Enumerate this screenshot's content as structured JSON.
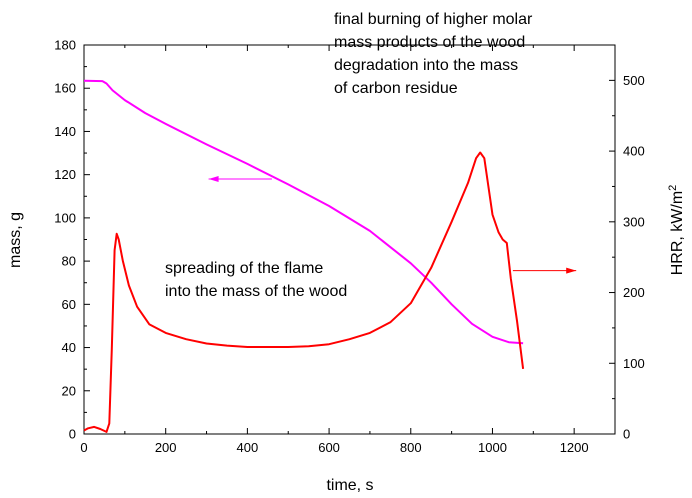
{
  "chart_data": {
    "type": "line",
    "xlabel": "time, s",
    "ylabel_left": "mass, g",
    "ylabel_right": "HRR, kW/m",
    "ylabel_right_superscript": "2",
    "xlim": [
      0,
      1300
    ],
    "ylim_left": [
      0,
      180
    ],
    "ylim_right": [
      0,
      550
    ],
    "x_ticks": [
      0,
      200,
      400,
      600,
      800,
      1000,
      1200
    ],
    "y_left_ticks": [
      0,
      20,
      40,
      60,
      80,
      100,
      120,
      140,
      160,
      180
    ],
    "y_right_ticks": [
      0,
      100,
      200,
      300,
      400,
      500
    ],
    "grid": false,
    "colors": {
      "mass": "#ff00ff",
      "hrr": "#ff0000",
      "axis": "#000000"
    },
    "series": [
      {
        "key": "mass",
        "axis": "left",
        "points": [
          [
            0,
            163.5
          ],
          [
            45,
            163.3
          ],
          [
            55,
            162.2
          ],
          [
            70,
            159
          ],
          [
            100,
            154.5
          ],
          [
            150,
            148.5
          ],
          [
            200,
            143.5
          ],
          [
            300,
            134
          ],
          [
            400,
            125
          ],
          [
            500,
            115.5
          ],
          [
            600,
            105.5
          ],
          [
            700,
            94
          ],
          [
            800,
            79
          ],
          [
            850,
            70
          ],
          [
            900,
            60
          ],
          [
            950,
            51
          ],
          [
            1000,
            45
          ],
          [
            1040,
            42.5
          ],
          [
            1075,
            42
          ]
        ]
      },
      {
        "key": "hrr",
        "axis": "right",
        "points": [
          [
            0,
            5
          ],
          [
            10,
            8
          ],
          [
            25,
            10
          ],
          [
            40,
            7
          ],
          [
            55,
            3
          ],
          [
            62,
            15
          ],
          [
            68,
            120
          ],
          [
            75,
            260
          ],
          [
            80,
            283
          ],
          [
            85,
            275
          ],
          [
            95,
            245
          ],
          [
            110,
            210
          ],
          [
            130,
            180
          ],
          [
            160,
            155
          ],
          [
            200,
            143
          ],
          [
            250,
            134
          ],
          [
            300,
            128
          ],
          [
            350,
            125
          ],
          [
            400,
            123
          ],
          [
            450,
            123
          ],
          [
            500,
            123
          ],
          [
            550,
            124
          ],
          [
            600,
            127
          ],
          [
            650,
            134
          ],
          [
            700,
            143
          ],
          [
            750,
            158
          ],
          [
            800,
            185
          ],
          [
            850,
            235
          ],
          [
            900,
            300
          ],
          [
            940,
            355
          ],
          [
            960,
            390
          ],
          [
            970,
            398
          ],
          [
            980,
            390
          ],
          [
            990,
            350
          ],
          [
            1000,
            310
          ],
          [
            1015,
            285
          ],
          [
            1025,
            275
          ],
          [
            1035,
            270
          ],
          [
            1045,
            220
          ],
          [
            1060,
            160
          ],
          [
            1075,
            92
          ]
        ]
      }
    ],
    "annotations": [
      {
        "lines": [
          "final  burning of higher molar",
          "mass products of the wood",
          "degradation into the mass",
          "of carbon residue"
        ]
      },
      {
        "lines": [
          "spreading of the flame",
          "into the mass of the wood"
        ]
      }
    ],
    "arrows": [
      {
        "series": "mass",
        "direction": "left",
        "from": [
          460,
          118
        ],
        "to": [
          305,
          118
        ],
        "axis": "left"
      },
      {
        "series": "hrr",
        "direction": "right",
        "from": [
          1050,
          231
        ],
        "to": [
          1205,
          231
        ],
        "axis": "right"
      }
    ]
  }
}
